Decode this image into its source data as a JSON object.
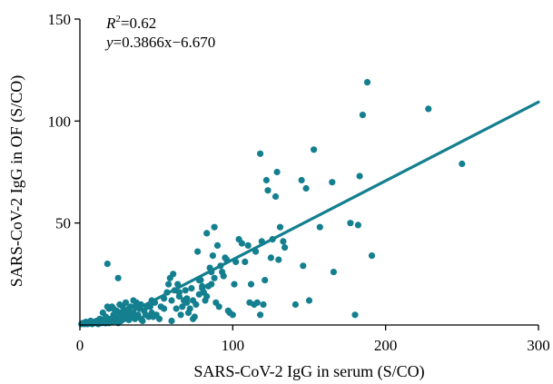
{
  "chart_data": {
    "type": "scatter",
    "title": "",
    "xlabel": "SARS-CoV-2 IgG in serum (S/CO)",
    "ylabel": "SARS-CoV-2 IgG in OF (S/CO)",
    "xlim": [
      0,
      300
    ],
    "ylim": [
      0,
      150
    ],
    "x_ticks": [
      0,
      100,
      200,
      300
    ],
    "y_ticks": [
      50,
      100,
      150
    ],
    "x_tick_labels": [
      "0",
      "100",
      "200",
      "300"
    ],
    "y_tick_labels": [
      "50",
      "100",
      "150"
    ],
    "grid": false,
    "legend": "none",
    "annotation": {
      "r2_symbol": "R",
      "r2_sup": "2",
      "r2_value": "=0.62",
      "eq_symbol": "y",
      "eq_text": "=0.3866x−6.670"
    },
    "marker_color": "#137f8f",
    "line_color": "#137f8f",
    "fit": {
      "slope": 0.3866,
      "intercept": -6.67,
      "x_range": [
        17,
        300
      ]
    },
    "points": [
      [
        1,
        0.5
      ],
      [
        2,
        1
      ],
      [
        3,
        0.5
      ],
      [
        4,
        1.5
      ],
      [
        5,
        0.5
      ],
      [
        6,
        1
      ],
      [
        7,
        2
      ],
      [
        8,
        0.5
      ],
      [
        9,
        1.5
      ],
      [
        10,
        1
      ],
      [
        11,
        2
      ],
      [
        12,
        0.5
      ],
      [
        13,
        3
      ],
      [
        14,
        1
      ],
      [
        15,
        2.5
      ],
      [
        16,
        1
      ],
      [
        17,
        4
      ],
      [
        18,
        2
      ],
      [
        19,
        1
      ],
      [
        20,
        3
      ],
      [
        21,
        1.5
      ],
      [
        22,
        5
      ],
      [
        23,
        2
      ],
      [
        24,
        3.5
      ],
      [
        25,
        1
      ],
      [
        26,
        6
      ],
      [
        27,
        2
      ],
      [
        28,
        4
      ],
      [
        29,
        3
      ],
      [
        30,
        5
      ],
      [
        31,
        7
      ],
      [
        32,
        2.5
      ],
      [
        33,
        9
      ],
      [
        34,
        4
      ],
      [
        35,
        6
      ],
      [
        36,
        3
      ],
      [
        37,
        11
      ],
      [
        38,
        5
      ],
      [
        39,
        8
      ],
      [
        40,
        3
      ],
      [
        42,
        7
      ],
      [
        44,
        9
      ],
      [
        45,
        4
      ],
      [
        47,
        6
      ],
      [
        49,
        11
      ],
      [
        50,
        5
      ],
      [
        52,
        3
      ],
      [
        55,
        8
      ],
      [
        19,
        8
      ],
      [
        21,
        9
      ],
      [
        24,
        7
      ],
      [
        28,
        9
      ],
      [
        30,
        11
      ],
      [
        32,
        8
      ],
      [
        35,
        12
      ],
      [
        38,
        10
      ],
      [
        26,
        10
      ],
      [
        33,
        5
      ],
      [
        40,
        10
      ],
      [
        43,
        5
      ],
      [
        46,
        9
      ],
      [
        15,
        6
      ],
      [
        22,
        8
      ],
      [
        29,
        7
      ],
      [
        36,
        9
      ],
      [
        41,
        2
      ],
      [
        48,
        4
      ],
      [
        18,
        30
      ],
      [
        25,
        23
      ],
      [
        18,
        9
      ],
      [
        53,
        9
      ],
      [
        55,
        13
      ],
      [
        57,
        16
      ],
      [
        58,
        20
      ],
      [
        59,
        23
      ],
      [
        60,
        12
      ],
      [
        61,
        25
      ],
      [
        62,
        17
      ],
      [
        63,
        8
      ],
      [
        64,
        20
      ],
      [
        65,
        14
      ],
      [
        66,
        5
      ],
      [
        67,
        9
      ],
      [
        68,
        12
      ],
      [
        69,
        17
      ],
      [
        70,
        11
      ],
      [
        71,
        6
      ],
      [
        72,
        8
      ],
      [
        73,
        18
      ],
      [
        74,
        12
      ],
      [
        75,
        4
      ],
      [
        76,
        10
      ],
      [
        77,
        36
      ],
      [
        78,
        15
      ],
      [
        79,
        22
      ],
      [
        80,
        18
      ],
      [
        81,
        16
      ],
      [
        82,
        12
      ],
      [
        83,
        14
      ],
      [
        84,
        19
      ],
      [
        85,
        28
      ],
      [
        86,
        20
      ],
      [
        87,
        34
      ],
      [
        88,
        23
      ],
      [
        89,
        11
      ],
      [
        90,
        39
      ],
      [
        91,
        9
      ],
      [
        92,
        29
      ],
      [
        93,
        26
      ],
      [
        94,
        24
      ],
      [
        95,
        33
      ],
      [
        96,
        32
      ],
      [
        97,
        7
      ],
      [
        98,
        6
      ],
      [
        100,
        5
      ],
      [
        101,
        20
      ],
      [
        102,
        31
      ],
      [
        104,
        42
      ],
      [
        106,
        40
      ],
      [
        108,
        31
      ],
      [
        110,
        39
      ],
      [
        111,
        11
      ],
      [
        112,
        20
      ],
      [
        114,
        10
      ],
      [
        115,
        36
      ],
      [
        116,
        11
      ],
      [
        118,
        5
      ],
      [
        118,
        84
      ],
      [
        119,
        41
      ],
      [
        120,
        10
      ],
      [
        121,
        22
      ],
      [
        122,
        71
      ],
      [
        123,
        66
      ],
      [
        125,
        33
      ],
      [
        126,
        42
      ],
      [
        128,
        63
      ],
      [
        129,
        75
      ],
      [
        130,
        32
      ],
      [
        131,
        48
      ],
      [
        133,
        41
      ],
      [
        134,
        38
      ],
      [
        141,
        10
      ],
      [
        145,
        71
      ],
      [
        146,
        29
      ],
      [
        148,
        67
      ],
      [
        150,
        12
      ],
      [
        153,
        86
      ],
      [
        157,
        48
      ],
      [
        165,
        70
      ],
      [
        166,
        26
      ],
      [
        177,
        50
      ],
      [
        180,
        5
      ],
      [
        182,
        49
      ],
      [
        183,
        73
      ],
      [
        185,
        103
      ],
      [
        188,
        119
      ],
      [
        191,
        34
      ],
      [
        228,
        106
      ],
      [
        250,
        79
      ],
      [
        74,
        3
      ],
      [
        83,
        45
      ],
      [
        78,
        22
      ],
      [
        88,
        48
      ],
      [
        60,
        2
      ],
      [
        65,
        16
      ],
      [
        47,
        12
      ],
      [
        70,
        13
      ],
      [
        80,
        19
      ],
      [
        86,
        26
      ]
    ]
  }
}
